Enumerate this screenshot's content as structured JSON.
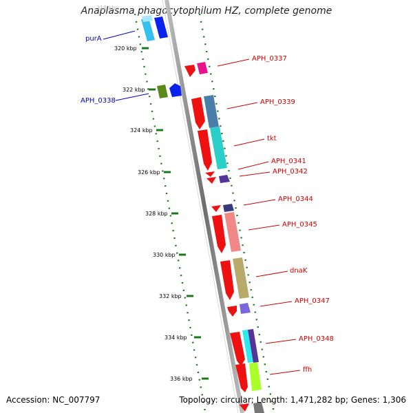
{
  "title": "Anaplasma phagocytophilum HZ, complete genome",
  "footer": {
    "accession": "Accession: NC_007797",
    "summary": "Topology: circular; Length: 1,471,282 bp; Genes: 1,306"
  },
  "ticks": [
    "318 kbp",
    "320 kbp",
    "322 kbp",
    "324 kbp",
    "326 kbp",
    "328 kbp",
    "330 kbp",
    "332 kbp",
    "334 kbp",
    "336 kbp"
  ],
  "gene_labels": [
    {
      "name": "purA",
      "side": "left",
      "color": "#0000cc"
    },
    {
      "name": "APH_0338",
      "side": "left",
      "color": "#0000cc"
    },
    {
      "name": "APH_0337",
      "side": "right",
      "color": "#cc0000"
    },
    {
      "name": "APH_0339",
      "side": "right",
      "color": "#cc0000"
    },
    {
      "name": "tkt",
      "side": "right",
      "color": "#cc0000"
    },
    {
      "name": "APH_0341",
      "side": "right",
      "color": "#cc0000"
    },
    {
      "name": "APH_0342",
      "side": "right",
      "color": "#cc0000"
    },
    {
      "name": "APH_0344",
      "side": "right",
      "color": "#cc0000"
    },
    {
      "name": "APH_0345",
      "side": "right",
      "color": "#cc0000"
    },
    {
      "name": "dnaK",
      "side": "right",
      "color": "#cc0000"
    },
    {
      "name": "APH_0347",
      "side": "right",
      "color": "#cc0000"
    },
    {
      "name": "APH_0348",
      "side": "right",
      "color": "#cc0000"
    },
    {
      "name": "ffh",
      "side": "right",
      "color": "#cc0000"
    }
  ],
  "colors": {
    "backbone": "#8c8c8c",
    "tick_ring": "#1a7a1a",
    "strand_arrow": "#ff1010"
  }
}
